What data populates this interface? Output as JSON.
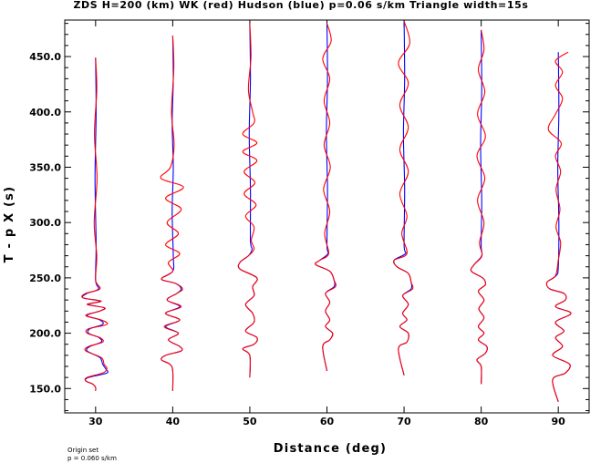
{
  "chart_data": {
    "type": "line",
    "title": "ZDS H=200 (km) WK (red) Hudson (blue) p=0.06 s/km Triangle width=15s",
    "xlabel": "Distance (deg)",
    "ylabel": "T - p X (s)",
    "xlim": [
      26,
      94
    ],
    "ylim": [
      128,
      483
    ],
    "xticks": [
      30,
      40,
      50,
      60,
      70,
      80,
      90
    ],
    "xtick_labels": [
      "30",
      "40",
      "50",
      "60",
      "70",
      "80",
      "90"
    ],
    "yticks": [
      150,
      200,
      250,
      300,
      350,
      400,
      450
    ],
    "ytick_labels": [
      "150.0",
      "200.0",
      "250.0",
      "300.0",
      "350.0",
      "400.0",
      "450.0"
    ],
    "grid": false,
    "series": [
      {
        "name": "WK",
        "color": "#ff0000",
        "traces": [
          {
            "distance": 30,
            "t": [
              449,
              420,
              380,
              340,
              300,
              270,
              248,
              240,
              236,
              232,
              229,
              226,
              223,
              220,
              216,
              212,
              208,
              204,
              200,
              196,
              192,
              188,
              184,
              178,
              172,
              168,
              164,
              160,
              157,
              154,
              151,
              148
            ],
            "amp": [
              0,
              0.4,
              -0.4,
              0.5,
              -0.5,
              0.4,
              0,
              1.5,
              -3.5,
              -4.5,
              2,
              -3,
              3.2,
              1.5,
              -3.5,
              2,
              4,
              -2.5,
              -3,
              1.5,
              2.5,
              -2.5,
              -3.5,
              2,
              3,
              4,
              2.5,
              -3,
              -3.5,
              -1,
              0,
              0
            ]
          },
          {
            "distance": 40,
            "t": [
              469,
              440,
              400,
              370,
              350,
              340,
              332,
              322,
              312,
              300,
              290,
              280,
              272,
              264,
              256,
              249,
              245,
              240,
              236,
              230,
              224,
              218,
              212,
              206,
              200,
              194,
              188,
              184,
              180,
              176,
              172,
              166,
              148
            ],
            "amp": [
              0,
              0.4,
              -0.4,
              0.5,
              -0.8,
              -4.2,
              3.8,
              -2.5,
              3,
              -2,
              2,
              -2.5,
              2.5,
              -1.5,
              0,
              -4,
              1,
              3.5,
              1.5,
              -2,
              3,
              -2.5,
              2.5,
              -3,
              2,
              -1.5,
              2.5,
              3,
              -2.5,
              -4,
              -1,
              0,
              0
            ]
          },
          {
            "distance": 50,
            "t": [
              480,
              450,
              420,
              400,
              390,
              380,
              372,
              364,
              356,
              346,
              336,
              326,
              316,
              306,
              296,
              284,
              276,
              270,
              264,
              258,
              250,
              242,
              234,
              226,
              218,
              210,
              202,
              196,
              190,
              186,
              180,
              160
            ],
            "amp": [
              0,
              0.4,
              -0.5,
              1,
              1.5,
              -2.5,
              2.5,
              -2.5,
              2.5,
              -2,
              1.8,
              -2,
              2.2,
              -1.5,
              1.5,
              0.5,
              1.5,
              -0.5,
              -3.5,
              -3.5,
              2.5,
              1,
              1.5,
              -1.5,
              1,
              1.5,
              -1.5,
              2.5,
              1.5,
              -2.5,
              0,
              0
            ]
          },
          {
            "distance": 60,
            "t": [
              480,
              464,
              448,
              430,
              410,
              390,
              370,
              350,
              330,
              310,
              290,
              272,
              266,
              262,
              256,
              248,
              242,
              236,
              228,
              220,
              212,
              206,
              200,
              194,
              188,
              166
            ],
            "amp": [
              0,
              1.5,
              -1.5,
              1,
              -1,
              1,
              -1,
              1.2,
              -1.2,
              1,
              -0.8,
              0.6,
              -2.5,
              -4,
              1,
              2.5,
              3,
              -0.5,
              1,
              -0.5,
              1,
              -0.5,
              2,
              1,
              -1.5,
              0
            ]
          },
          {
            "distance": 70,
            "t": [
              482,
              462,
              444,
              426,
              406,
              386,
              366,
              346,
              326,
              306,
              290,
              272,
              266,
              260,
              254,
              246,
              240,
              234,
              226,
              218,
              212,
              206,
              200,
              192,
              186,
              162
            ],
            "amp": [
              0,
              2,
              -2,
              1.5,
              -1.5,
              1.5,
              -1.5,
              1.5,
              -1.5,
              1,
              -0.8,
              1,
              -3.5,
              -2.5,
              1.5,
              2.5,
              3,
              -0.5,
              1.5,
              -0.5,
              1,
              -1.5,
              1.5,
              1,
              -2,
              0
            ]
          },
          {
            "distance": 80,
            "t": [
              474,
              456,
              438,
              418,
              398,
              378,
              360,
              340,
              320,
              300,
              282,
              270,
              262,
              256,
              250,
              244,
              238,
              230,
              222,
              214,
              206,
              200,
              194,
              188,
              182,
              176,
              170,
              154
            ],
            "amp": [
              0,
              1,
              -1,
              1.3,
              -1.3,
              1.5,
              -1.5,
              1.3,
              -1.3,
              1,
              -0.6,
              0.3,
              -2.5,
              -3.5,
              0.5,
              1.5,
              -1,
              1,
              -0.8,
              1,
              -1,
              1,
              -1,
              2,
              1.5,
              -1.5,
              0,
              0
            ]
          },
          {
            "distance": 90,
            "t": [
              454,
              446,
              436,
              424,
              412,
              398,
              384,
              372,
              360,
              346,
              330,
              312,
              296,
              282,
              266,
              252,
              246,
              240,
              236,
              230,
              224,
              218,
              210,
              202,
              196,
              188,
              180,
              172,
              164,
              158,
              138
            ],
            "amp": [
              3.5,
              -1,
              1.5,
              -1,
              1.5,
              -1,
              -3.5,
              1,
              -1,
              0.8,
              -0.8,
              0.6,
              -0.8,
              0.8,
              0,
              -1,
              -4,
              -3,
              2,
              2.5,
              -1,
              4.5,
              -1,
              2,
              -1,
              1.5,
              -2,
              4,
              2.5,
              -2,
              0
            ]
          }
        ]
      },
      {
        "name": "Hudson",
        "color": "#0000ff",
        "traces": [
          {
            "distance": 30,
            "t": [
              449,
              400,
              340,
              280,
              248,
              240,
              236,
              232,
              229,
              226,
              223,
              220,
              216,
              212,
              208,
              204,
              200,
              196,
              192,
              188,
              184,
              178,
              172,
              168,
              164,
              160,
              157,
              154,
              151,
              148
            ],
            "amp": [
              0,
              0.2,
              -0.2,
              0.2,
              0,
              1,
              -3,
              -4.5,
              1.5,
              -2.5,
              3,
              1.5,
              -3,
              1.5,
              2.5,
              -2,
              -2.5,
              1.2,
              2,
              -2,
              -3,
              1.5,
              2.5,
              3.5,
              4,
              -2.5,
              -3.5,
              -1,
              0,
              0
            ]
          },
          {
            "distance": 40,
            "t": [
              469,
              430,
              390,
              350,
              310,
              270,
              256,
              249,
              245,
              240,
              236,
              230,
              224,
              218,
              212,
              206,
              200,
              194,
              188,
              184,
              180,
              176,
              172,
              166,
              148
            ],
            "amp": [
              0,
              0.2,
              -0.2,
              0.2,
              -0.2,
              0.2,
              0,
              -4,
              1,
              3,
              1.5,
              -2,
              2.5,
              -2.5,
              2.5,
              -2.5,
              2,
              -1.5,
              2.5,
              3,
              -2.5,
              -4,
              -1,
              0,
              0
            ]
          },
          {
            "distance": 50,
            "t": [
              480,
              430,
              380,
              330,
              284,
              276,
              270,
              264,
              258,
              250,
              242,
              234,
              226,
              218,
              210,
              202,
              196,
              190,
              186,
              180,
              160
            ],
            "amp": [
              0,
              0.2,
              -0.2,
              0.2,
              0.2,
              0.8,
              -0.5,
              -3.5,
              -3.5,
              2.5,
              1,
              1.5,
              -1.5,
              1,
              1.5,
              -1.5,
              2.5,
              1.5,
              -2.5,
              0,
              0
            ]
          },
          {
            "distance": 60,
            "t": [
              480,
              430,
              380,
              330,
              280,
              272,
              266,
              262,
              256,
              248,
              242,
              236,
              228,
              220,
              212,
              206,
              200,
              194,
              188,
              166
            ],
            "amp": [
              0,
              0.2,
              -0.2,
              0.2,
              0,
              0.4,
              -2.5,
              -4,
              1,
              2.5,
              2.5,
              -0.5,
              1,
              -0.5,
              1,
              -0.5,
              2,
              1,
              -1.5,
              0
            ]
          },
          {
            "distance": 70,
            "t": [
              482,
              430,
              380,
              330,
              280,
              272,
              266,
              260,
              254,
              246,
              240,
              234,
              226,
              218,
              212,
              206,
              200,
              192,
              186,
              162
            ],
            "amp": [
              0,
              0.2,
              -0.2,
              0.2,
              0,
              0.5,
              -3.5,
              -2.5,
              1.5,
              2.5,
              2.5,
              -0.5,
              1.5,
              -0.5,
              1,
              -1.5,
              1.5,
              1,
              -2,
              0
            ]
          },
          {
            "distance": 80,
            "t": [
              474,
              420,
              370,
              320,
              280,
              270,
              262,
              256,
              250,
              244,
              238,
              230,
              222,
              214,
              206,
              200,
              194,
              188,
              182,
              176,
              170,
              154
            ],
            "amp": [
              0,
              0.2,
              -0.2,
              0.2,
              0,
              0.2,
              -2.5,
              -3.5,
              0.5,
              1.5,
              -1,
              1,
              -0.8,
              1,
              -1,
              1,
              -1,
              2,
              1.5,
              -1.5,
              0,
              0
            ]
          },
          {
            "distance": 90,
            "t": [
              454,
              400,
              350,
              300,
              260,
              252,
              246,
              240,
              236,
              230,
              224,
              218,
              210,
              202,
              196,
              188,
              180,
              172,
              164,
              158,
              138
            ],
            "amp": [
              0,
              0.2,
              -0.2,
              0.2,
              0,
              -0.8,
              -4,
              -3,
              2,
              2.5,
              -1,
              4.5,
              -1,
              2,
              -1,
              1.5,
              -2,
              4,
              2.5,
              -2,
              0
            ]
          }
        ]
      }
    ],
    "annotations": [
      "Origin set",
      "p = 0.060 s/km"
    ]
  }
}
